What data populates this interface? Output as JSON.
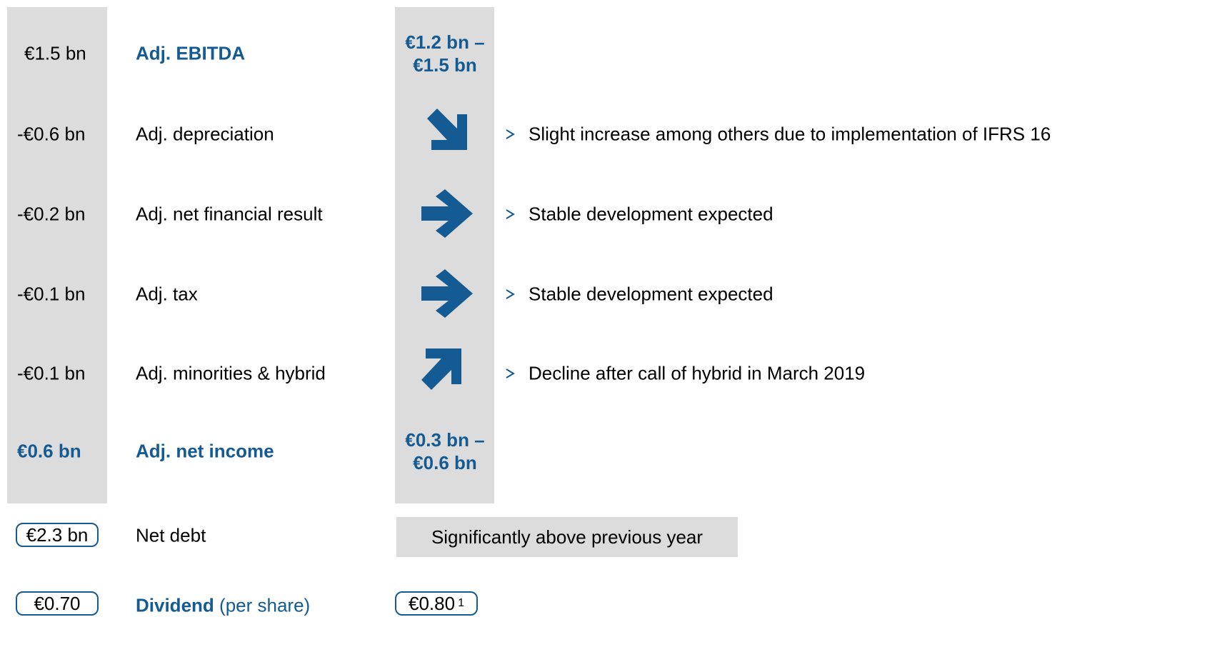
{
  "rows": [
    {
      "previous": "€1.5 bn",
      "label": "Adj. EBITDA",
      "outlook": "€1.2 bn – €1.5 bn"
    },
    {
      "previous": "-€0.6 bn",
      "label": "Adj. depreciation",
      "comment": "Slight increase among others due to implementation of IFRS 16"
    },
    {
      "previous": "-€0.2 bn",
      "label": "Adj. net financial result",
      "comment": "Stable development expected"
    },
    {
      "previous": "-€0.1 bn",
      "label": "Adj. tax",
      "comment": "Stable development expected"
    },
    {
      "previous": "-€0.1 bn",
      "label": "Adj. minorities & hybrid",
      "comment": "Decline after call of hybrid in March 2019"
    },
    {
      "previous": "€0.6 bn",
      "label": "Adj. net income",
      "outlook": "€0.3 bn – €0.6 bn"
    }
  ],
  "net_debt": {
    "previous": "€2.3 bn",
    "label": "Net debt",
    "outlook": "Significantly above previous year"
  },
  "dividend": {
    "previous": "€0.70",
    "label": "Dividend",
    "label_note": "(per share)",
    "outlook": "€0.80",
    "footnote": "1"
  }
}
